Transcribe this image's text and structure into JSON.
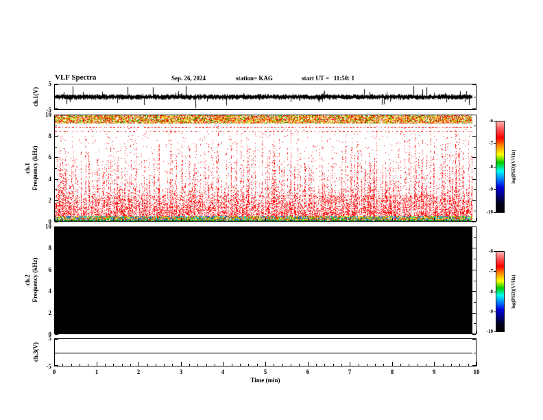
{
  "header": {
    "title": "VLF Spectra",
    "date": "Sep. 26, 2024",
    "station": "station= KAG",
    "start_ut": "start UT =   11:50: 1"
  },
  "x_axis": {
    "label": "Time (min)",
    "ticks": [
      0,
      1,
      2,
      3,
      4,
      5,
      6,
      7,
      8,
      9,
      10
    ],
    "range": [
      0,
      10
    ],
    "minor_step": 0.2
  },
  "colorbar": {
    "label": "log(PSD)(V²/Hz)",
    "ticks": [
      -6,
      -7,
      -8,
      -9,
      -10
    ],
    "range": [
      -10,
      -6
    ],
    "gradient": [
      "#ffb6b6",
      "#ff5050",
      "#ff0000",
      "#ff9000",
      "#ffff00",
      "#00cc00",
      "#00ffee",
      "#0080ff",
      "#0000dd",
      "#000080",
      "#000018",
      "#000000"
    ]
  },
  "chart_data": [
    {
      "id": "ch1_waveform",
      "type": "line",
      "ylabel": "ch.1(V)",
      "xlim": [
        0,
        10
      ],
      "ylim": [
        -5,
        5
      ],
      "yticks": [
        5,
        -5
      ],
      "description": "Continuous broadband noise waveform, mean 0 V, typical excursions about ±1–2 V with frequent impulsive spikes reaching roughly ±4–5 V throughout the full 10 minutes",
      "color": "#000000",
      "noise_v": 0.9,
      "spike_prob": 0.14,
      "spike_v": 3.4
    },
    {
      "id": "ch1_spectrogram",
      "type": "heatmap",
      "ylabel": "ch.1 Frequency (kHz)",
      "ylabel_lines": [
        "ch.1",
        "Frequency (kHz)"
      ],
      "xlim": [
        0,
        10
      ],
      "ylim": [
        0,
        10
      ],
      "yticks": [
        0,
        2,
        4,
        6,
        8,
        10
      ],
      "zlabel": "log(PSD)(V²/Hz)",
      "zlim": [
        -10,
        -6
      ],
      "features": [
        "white background = low power near -10 log(PSD)",
        "dense multicoloured (red/orange/yellow/green) band at 9.3–10 kHz spanning the whole record",
        "two dotted red horizontal lines near 8.9 kHz and 8.5 kHz",
        "red vertical impulsive streaks (atmospherics) at nearly every time step, most reaching 2–6 kHz, many reaching 8–10 kHz",
        "dense multicoloured band at 0–0.4 kHz spanning the whole record",
        "data ends slightly before t = 10 min"
      ],
      "streak_color": "#ff0000"
    },
    {
      "id": "ch2_spectrogram",
      "type": "heatmap",
      "ylabel": "ch.2 Frequency (kHz)",
      "ylabel_lines": [
        "ch.2",
        "Frequency (kHz)"
      ],
      "xlim": [
        0,
        10
      ],
      "ylim": [
        0,
        10
      ],
      "yticks": [
        0,
        2,
        4,
        6,
        8,
        10
      ],
      "zlabel": "log(PSD)(V²/Hz)",
      "zlim": [
        -10,
        -6
      ],
      "features": [
        "uniform black panel: PSD at or below -10 everywhere, i.e. no signal recorded on channel 2"
      ],
      "fill": "#000000"
    },
    {
      "id": "ch3_waveform",
      "type": "line",
      "ylabel": "ch.3(V)",
      "xlim": [
        0,
        10
      ],
      "ylim": [
        -5,
        5
      ],
      "yticks": [
        5,
        -5
      ],
      "description": "Perfectly flat trace at 0 V for the whole 10 minutes (no signal on channel 3)",
      "constant_value": 0,
      "color": "#000000"
    }
  ]
}
